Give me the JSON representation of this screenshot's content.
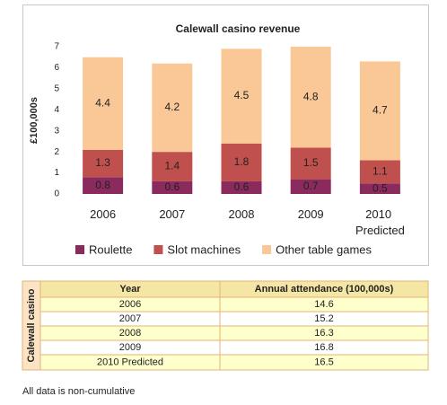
{
  "chart_data": {
    "type": "stacked-bar",
    "title": "Calewall casino revenue",
    "y_label": "£100,000s",
    "categories": [
      "2006",
      "2007",
      "2008",
      "2009",
      "2010 Predicted"
    ],
    "series": [
      {
        "name": "Roulette",
        "color": "#8b2a5c",
        "values": [
          0.8,
          0.6,
          0.6,
          0.7,
          0.5
        ]
      },
      {
        "name": "Slot machines",
        "color": "#c0504d",
        "values": [
          1.3,
          1.4,
          1.8,
          1.5,
          1.1
        ]
      },
      {
        "name": "Other table games",
        "color": "#fac896",
        "values": [
          4.4,
          4.2,
          4.5,
          4.8,
          4.7
        ]
      }
    ],
    "ylim": [
      0,
      7
    ],
    "yticks": [
      0,
      1,
      2,
      3,
      4,
      5,
      6,
      7
    ],
    "legend": "bottom"
  },
  "table": {
    "side_label": "Calewall casino",
    "header": [
      "Year",
      "Annual attendance (100,000s)"
    ],
    "rows": [
      [
        "2006",
        14.6
      ],
      [
        "2007",
        15.2
      ],
      [
        "2008",
        16.3
      ],
      [
        "2009",
        16.8
      ],
      [
        "2010 Predicted",
        16.5
      ]
    ]
  },
  "note": "All data is non-cumulative"
}
